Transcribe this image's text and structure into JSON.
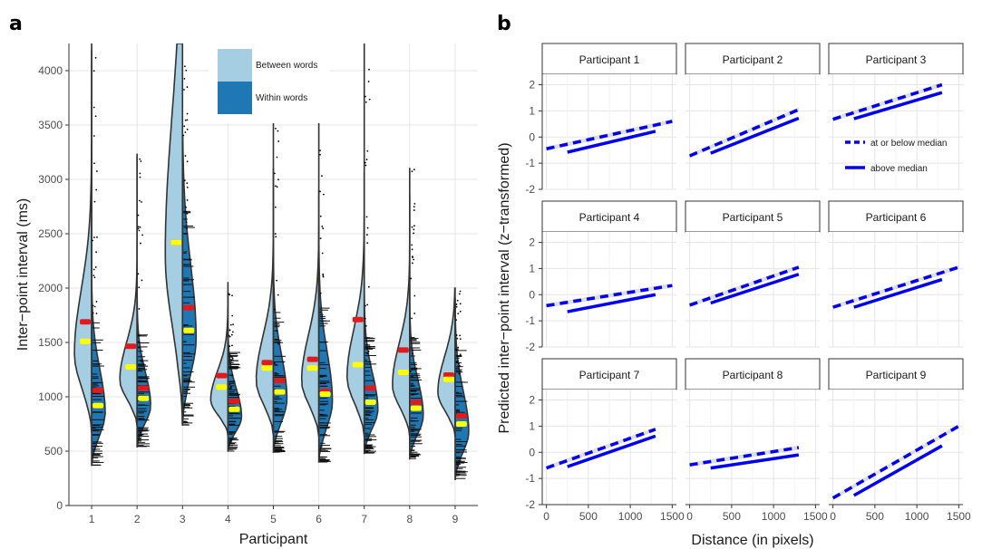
{
  "panel_labels": {
    "a": "a",
    "b": "b"
  },
  "chart_data": [
    {
      "type": "violin",
      "xlabel": "Participant",
      "ylabel": "Inter−point interval (ms)",
      "ylim": [
        0,
        4250
      ],
      "yticks": [
        0,
        500,
        1000,
        1500,
        2000,
        2500,
        3000,
        3500,
        4000
      ],
      "categories": [
        "1",
        "2",
        "3",
        "4",
        "5",
        "6",
        "7",
        "8",
        "9"
      ],
      "grid": true,
      "legend": {
        "position": "top-center",
        "entries": [
          "Between words",
          "Within words"
        ]
      },
      "colors": {
        "between": "#a6cee3",
        "within": "#1f78b4",
        "median": "#ffff00",
        "mean": "#e31a1c",
        "outline": "#333333",
        "points": "#000000"
      },
      "series": [
        {
          "name": "Between words",
          "mean": [
            1690,
            1465,
            2420,
            1195,
            1315,
            1345,
            1710,
            1430,
            1200
          ],
          "median": [
            1510,
            1275,
            2420,
            1090,
            1265,
            1265,
            1295,
            1225,
            1160
          ],
          "min": [
            680,
            740,
            750,
            650,
            650,
            640,
            640,
            640,
            640
          ],
          "max": [
            4250,
            3200,
            4250,
            2050,
            4250,
            4250,
            4250,
            3100,
            2000
          ]
        },
        {
          "name": "Within words",
          "mean": [
            1060,
            1080,
            1820,
            960,
            1150,
            1050,
            1080,
            950,
            825
          ],
          "median": [
            920,
            985,
            1610,
            885,
            1045,
            1025,
            950,
            895,
            750
          ],
          "min": [
            370,
            540,
            740,
            500,
            490,
            400,
            480,
            430,
            240
          ],
          "max": [
            4180,
            3230,
            3400,
            1950,
            3100,
            2900,
            3050,
            2850,
            1900
          ]
        }
      ]
    },
    {
      "type": "line",
      "facet": true,
      "xlabel": "Distance (in pixels)",
      "ylabel": "Predicted inter−point interval (z−transformed)",
      "xlim": [
        -50,
        1550
      ],
      "ylim": [
        -2,
        2.4
      ],
      "xticks": [
        0,
        500,
        1000,
        1500
      ],
      "yticks": [
        -2,
        -1,
        0,
        1,
        2
      ],
      "legend": {
        "position": "inside panel Participant 3",
        "entries": [
          "at or below median",
          "above median"
        ]
      },
      "colors": {
        "line": "#0000ee",
        "ribbon": "#c8c8c8"
      },
      "facets": [
        {
          "title": "Participant 1",
          "at_or_below": {
            "x": [
              0,
              1500
            ],
            "y": [
              -0.45,
              0.6
            ]
          },
          "above": {
            "x": [
              250,
              1300
            ],
            "y": [
              -0.58,
              0.22
            ]
          }
        },
        {
          "title": "Participant 2",
          "at_or_below": {
            "x": [
              0,
              1300
            ],
            "y": [
              -0.72,
              1.05
            ]
          },
          "above": {
            "x": [
              250,
              1300
            ],
            "y": [
              -0.62,
              0.72
            ]
          }
        },
        {
          "title": "Participant 3",
          "at_or_below": {
            "x": [
              0,
              1300
            ],
            "y": [
              0.68,
              2.0
            ]
          },
          "above": {
            "x": [
              250,
              1300
            ],
            "y": [
              0.7,
              1.7
            ]
          }
        },
        {
          "title": "Participant 4",
          "at_or_below": {
            "x": [
              0,
              1500
            ],
            "y": [
              -0.42,
              0.35
            ]
          },
          "above": {
            "x": [
              250,
              1300
            ],
            "y": [
              -0.65,
              0.0
            ]
          }
        },
        {
          "title": "Participant 5",
          "at_or_below": {
            "x": [
              0,
              1300
            ],
            "y": [
              -0.4,
              1.05
            ]
          },
          "above": {
            "x": [
              250,
              1300
            ],
            "y": [
              -0.32,
              0.78
            ]
          }
        },
        {
          "title": "Participant 6",
          "at_or_below": {
            "x": [
              0,
              1500
            ],
            "y": [
              -0.48,
              1.05
            ]
          },
          "above": {
            "x": [
              250,
              1300
            ],
            "y": [
              -0.48,
              0.58
            ]
          }
        },
        {
          "title": "Participant 7",
          "at_or_below": {
            "x": [
              0,
              1300
            ],
            "y": [
              -0.6,
              0.88
            ]
          },
          "above": {
            "x": [
              250,
              1300
            ],
            "y": [
              -0.55,
              0.62
            ]
          }
        },
        {
          "title": "Participant 8",
          "at_or_below": {
            "x": [
              0,
              1300
            ],
            "y": [
              -0.48,
              0.18
            ]
          },
          "above": {
            "x": [
              250,
              1300
            ],
            "y": [
              -0.6,
              -0.1
            ]
          }
        },
        {
          "title": "Participant 9",
          "at_or_below": {
            "x": [
              0,
              1500
            ],
            "y": [
              -1.75,
              1.0
            ]
          },
          "above": {
            "x": [
              250,
              1300
            ],
            "y": [
              -1.65,
              0.25
            ]
          }
        }
      ]
    }
  ]
}
